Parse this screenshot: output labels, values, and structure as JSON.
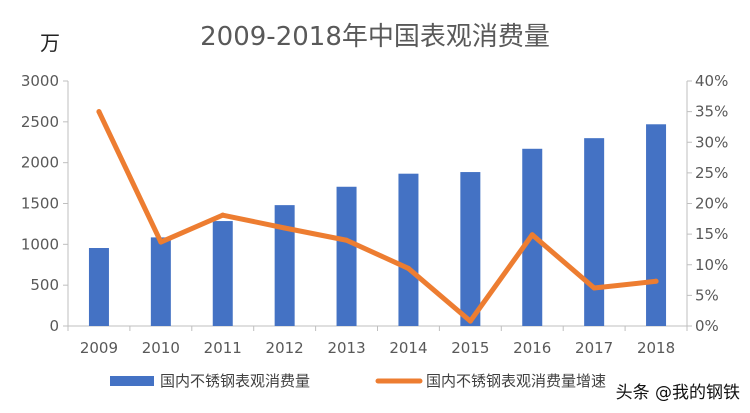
{
  "chart_data": {
    "type": "bar+line",
    "title": "2009-2018年中国表观消费量",
    "y_unit_label": "万",
    "categories": [
      "2009",
      "2010",
      "2011",
      "2012",
      "2013",
      "2014",
      "2015",
      "2016",
      "2017",
      "2018"
    ],
    "series": [
      {
        "name": "国内不锈钢表观消费量",
        "type": "bar",
        "axis": "left",
        "color": "#4472C4",
        "values": [
          955,
          1085,
          1285,
          1480,
          1705,
          1865,
          1885,
          2170,
          2300,
          2470
        ]
      },
      {
        "name": "国内不锈钢表观消费量增速",
        "type": "line",
        "axis": "right",
        "color": "#ED7D31",
        "values": [
          35.0,
          13.7,
          18.1,
          16.0,
          14.0,
          9.4,
          0.8,
          14.9,
          6.2,
          7.3
        ]
      }
    ],
    "y_left": {
      "min": 0,
      "max": 3000,
      "ticks": [
        "0",
        "500",
        "1000",
        "1500",
        "2000",
        "2500",
        "3000"
      ]
    },
    "y_right": {
      "min": 0,
      "max": 40,
      "ticks": [
        "0%",
        "5%",
        "10%",
        "15%",
        "20%",
        "25%",
        "30%",
        "35%",
        "40%"
      ]
    },
    "grid": false,
    "legend_position": "bottom"
  },
  "watermark": "头条 @我的钢铁"
}
